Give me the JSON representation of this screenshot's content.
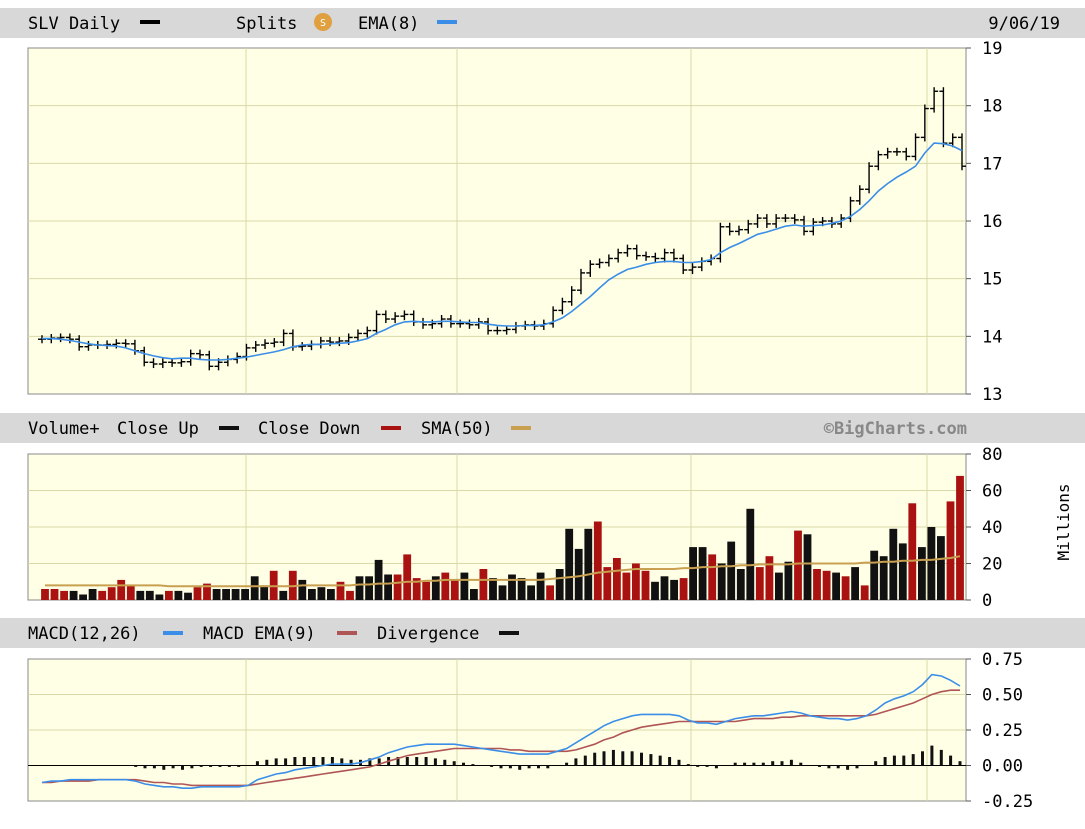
{
  "colors": {
    "bar_bg": "#d8d8d8",
    "plot_bg": "#ffffe6",
    "grid": "#d8d8a8",
    "price": "#000000",
    "ema": "#3b8ee8",
    "vol_up": "#111111",
    "vol_down": "#aa1111",
    "sma": "#c8a050",
    "macd": "#3b8ee8",
    "macd_ema": "#b05555",
    "divergence": "#111111",
    "splits_badge": "#e0a040"
  },
  "price_panel": {
    "symbol_label": "SLV Daily",
    "splits_label": "Splits",
    "splits_icon": "S",
    "ema_label": "EMA(8)",
    "date": "9/06/19"
  },
  "volume_panel": {
    "volume_label": "Volume+",
    "close_up_label": "Close Up",
    "close_down_label": "Close Down",
    "sma_label": "SMA(50)",
    "watermark": "©BigCharts.com",
    "unit_label": "Millions"
  },
  "macd_panel": {
    "macd_label": "MACD(12,26)",
    "macd_ema_label": "MACD EMA(9)",
    "divergence_label": "Divergence"
  },
  "chart_data": [
    {
      "type": "ohlc",
      "title": "SLV Daily",
      "ylim": [
        13,
        19
      ],
      "yticks": [
        "19",
        "18",
        "17",
        "16",
        "15",
        "14",
        "13"
      ],
      "ytick_values": [
        19,
        18,
        17,
        16,
        15,
        14,
        13
      ],
      "series": [
        {
          "name": "SLV",
          "style": "ohlc-bar",
          "close": [
            13.95,
            13.97,
            13.98,
            13.95,
            13.82,
            13.85,
            13.85,
            13.86,
            13.88,
            13.87,
            13.75,
            13.55,
            13.52,
            13.55,
            13.54,
            13.56,
            13.7,
            13.68,
            13.48,
            13.55,
            13.6,
            13.65,
            13.8,
            13.85,
            13.88,
            13.9,
            14.05,
            13.82,
            13.83,
            13.86,
            13.92,
            13.9,
            13.92,
            13.98,
            14.05,
            14.1,
            14.38,
            14.3,
            14.35,
            14.38,
            14.25,
            14.2,
            14.22,
            14.3,
            14.22,
            14.22,
            14.2,
            14.25,
            14.1,
            14.1,
            14.12,
            14.18,
            14.2,
            14.18,
            14.22,
            14.45,
            14.6,
            14.8,
            15.1,
            15.25,
            15.28,
            15.35,
            15.45,
            15.52,
            15.4,
            15.38,
            15.35,
            15.45,
            15.35,
            15.15,
            15.2,
            15.3,
            15.35,
            15.9,
            15.82,
            15.85,
            15.95,
            16.05,
            15.95,
            16.05,
            16.05,
            16.02,
            15.82,
            15.98,
            16.0,
            15.95,
            16.05,
            16.35,
            16.55,
            16.95,
            17.15,
            17.2,
            17.2,
            17.12,
            17.45,
            17.95,
            18.25,
            17.35,
            17.45,
            16.95
          ]
        },
        {
          "name": "EMA(8)",
          "style": "line",
          "values": [
            13.96,
            13.96,
            13.95,
            13.93,
            13.9,
            13.87,
            13.85,
            13.84,
            13.83,
            13.8,
            13.75,
            13.7,
            13.66,
            13.63,
            13.61,
            13.62,
            13.62,
            13.6,
            13.59,
            13.59,
            13.6,
            13.62,
            13.64,
            13.67,
            13.7,
            13.73,
            13.77,
            13.82,
            13.85,
            13.86,
            13.86,
            13.87,
            13.88,
            13.89,
            13.92,
            13.96,
            14.05,
            14.12,
            14.2,
            14.25,
            14.26,
            14.25,
            14.25,
            14.26,
            14.26,
            14.25,
            14.24,
            14.24,
            14.21,
            14.19,
            14.18,
            14.18,
            14.19,
            14.19,
            14.2,
            14.25,
            14.32,
            14.43,
            14.56,
            14.69,
            14.84,
            14.98,
            15.08,
            15.16,
            15.2,
            15.25,
            15.28,
            15.3,
            15.3,
            15.28,
            15.28,
            15.3,
            15.33,
            15.45,
            15.54,
            15.61,
            15.69,
            15.77,
            15.81,
            15.86,
            15.91,
            15.93,
            15.91,
            15.92,
            15.93,
            15.96,
            16.0,
            16.08,
            16.2,
            16.35,
            16.52,
            16.65,
            16.76,
            16.85,
            16.95,
            17.18,
            17.35,
            17.34,
            17.3,
            17.22
          ]
        }
      ]
    },
    {
      "type": "bar",
      "title": "Volume+",
      "ylim": [
        0,
        80
      ],
      "yticks": [
        "80",
        "60",
        "40",
        "20",
        "0"
      ],
      "ytick_values": [
        80,
        60,
        40,
        20,
        0
      ],
      "ylabel": "Millions",
      "series": [
        {
          "name": "Close Up / Close Down",
          "style": "bars",
          "values": [
            6,
            6,
            5,
            5,
            3,
            6,
            5,
            7,
            11,
            8,
            5,
            5,
            3,
            5,
            5,
            4,
            7,
            9,
            6,
            6,
            6,
            6,
            13,
            8,
            16,
            5,
            16,
            11,
            6,
            7,
            6,
            10,
            5,
            13,
            13,
            22,
            14,
            14,
            25,
            12,
            10,
            13,
            15,
            11,
            15,
            6,
            17,
            12,
            8,
            14,
            12,
            8,
            15,
            8,
            17,
            39,
            28,
            39,
            43,
            18,
            23,
            15,
            20,
            16,
            10,
            13,
            11,
            12,
            29,
            29,
            25,
            20,
            32,
            17,
            50,
            18,
            24,
            15,
            21,
            38,
            36,
            17,
            16,
            15,
            13,
            18,
            8,
            27,
            24,
            39,
            31,
            53,
            29,
            40,
            35,
            54,
            68
          ],
          "up": [
            0,
            0,
            0,
            1,
            1,
            1,
            0,
            0,
            0,
            0,
            1,
            1,
            1,
            0,
            1,
            1,
            0,
            0,
            1,
            1,
            1,
            1,
            1,
            1,
            0,
            1,
            0,
            1,
            1,
            1,
            1,
            0,
            0,
            1,
            1,
            1,
            1,
            0,
            0,
            0,
            0,
            1,
            0,
            0,
            1,
            1,
            0,
            1,
            1,
            1,
            1,
            1,
            1,
            0,
            1,
            1,
            1,
            1,
            0,
            0,
            0,
            0,
            0,
            0,
            1,
            1,
            1,
            0,
            1,
            1,
            0,
            1,
            1,
            1,
            1,
            0,
            0,
            1,
            1,
            0,
            1,
            0,
            0,
            1,
            0,
            1,
            0,
            1,
            1,
            1,
            1,
            0,
            1,
            1,
            1,
            0,
            0
          ]
        },
        {
          "name": "SMA(50)",
          "style": "line",
          "values": [
            8,
            8,
            8,
            8,
            8,
            8,
            8,
            8,
            8,
            8,
            8,
            8,
            8,
            7.5,
            7.5,
            7.5,
            7.5,
            7.5,
            7.5,
            7.5,
            7.5,
            7.5,
            7.5,
            7.5,
            7.5,
            7.5,
            7.5,
            8,
            8,
            8,
            8,
            8,
            8,
            8.5,
            8.5,
            9,
            9,
            9.5,
            10,
            10,
            10.5,
            10.5,
            11,
            11,
            11,
            11,
            11,
            11,
            11,
            11,
            11,
            11,
            11,
            11.5,
            12,
            12.5,
            13,
            14,
            15,
            15.5,
            16,
            16.5,
            17,
            17,
            17,
            17,
            17,
            17.5,
            17.5,
            18,
            18,
            18.5,
            18.5,
            19,
            19,
            19.5,
            19.5,
            19.5,
            19.5,
            20,
            20,
            20,
            20,
            20,
            20,
            20,
            20.5,
            20.5,
            21,
            21,
            21.5,
            21.5,
            22,
            22,
            22.5,
            23,
            24
          ]
        }
      ]
    },
    {
      "type": "line",
      "title": "MACD(12,26)",
      "ylim": [
        -0.25,
        0.75
      ],
      "yticks": [
        "0.75",
        "0.50",
        "0.25",
        "0.00",
        "-0.25"
      ],
      "ytick_values": [
        0.75,
        0.5,
        0.25,
        0,
        -0.25
      ],
      "series": [
        {
          "name": "MACD(12,26)",
          "style": "line",
          "values": [
            -0.12,
            -0.11,
            -0.11,
            -0.1,
            -0.1,
            -0.1,
            -0.1,
            -0.1,
            -0.1,
            -0.1,
            -0.11,
            -0.13,
            -0.14,
            -0.15,
            -0.15,
            -0.16,
            -0.16,
            -0.15,
            -0.15,
            -0.15,
            -0.15,
            -0.15,
            -0.14,
            -0.1,
            -0.08,
            -0.06,
            -0.05,
            -0.03,
            -0.02,
            -0.01,
            0,
            0.01,
            0.01,
            0.01,
            0.02,
            0.04,
            0.06,
            0.09,
            0.11,
            0.13,
            0.14,
            0.15,
            0.15,
            0.15,
            0.15,
            0.14,
            0.13,
            0.12,
            0.11,
            0.1,
            0.09,
            0.08,
            0.08,
            0.08,
            0.08,
            0.1,
            0.12,
            0.16,
            0.2,
            0.24,
            0.28,
            0.31,
            0.33,
            0.35,
            0.36,
            0.36,
            0.36,
            0.36,
            0.35,
            0.32,
            0.3,
            0.3,
            0.29,
            0.31,
            0.33,
            0.34,
            0.35,
            0.35,
            0.36,
            0.37,
            0.38,
            0.37,
            0.35,
            0.34,
            0.33,
            0.33,
            0.32,
            0.33,
            0.35,
            0.39,
            0.44,
            0.47,
            0.49,
            0.52,
            0.57,
            0.64,
            0.63,
            0.6,
            0.56
          ]
        },
        {
          "name": "MACD EMA(9)",
          "style": "line",
          "values": [
            -0.12,
            -0.12,
            -0.11,
            -0.11,
            -0.11,
            -0.11,
            -0.1,
            -0.1,
            -0.1,
            -0.1,
            -0.1,
            -0.11,
            -0.12,
            -0.12,
            -0.13,
            -0.13,
            -0.14,
            -0.14,
            -0.14,
            -0.14,
            -0.14,
            -0.14,
            -0.14,
            -0.13,
            -0.12,
            -0.11,
            -0.1,
            -0.09,
            -0.08,
            -0.07,
            -0.06,
            -0.05,
            -0.04,
            -0.03,
            -0.02,
            -0.01,
            0.01,
            0.03,
            0.05,
            0.07,
            0.08,
            0.09,
            0.1,
            0.11,
            0.12,
            0.12,
            0.12,
            0.12,
            0.12,
            0.12,
            0.11,
            0.11,
            0.1,
            0.1,
            0.1,
            0.1,
            0.1,
            0.11,
            0.13,
            0.15,
            0.18,
            0.2,
            0.23,
            0.25,
            0.27,
            0.28,
            0.29,
            0.3,
            0.31,
            0.31,
            0.31,
            0.31,
            0.31,
            0.31,
            0.31,
            0.32,
            0.33,
            0.33,
            0.33,
            0.34,
            0.34,
            0.35,
            0.35,
            0.35,
            0.35,
            0.35,
            0.35,
            0.35,
            0.35,
            0.36,
            0.38,
            0.4,
            0.42,
            0.44,
            0.47,
            0.5,
            0.52,
            0.53,
            0.53
          ]
        },
        {
          "name": "Divergence",
          "style": "bars",
          "values": [
            0,
            0,
            0,
            0,
            0,
            0,
            0,
            0,
            0,
            0,
            -0.01,
            -0.02,
            -0.02,
            -0.03,
            -0.02,
            -0.03,
            -0.02,
            -0.01,
            -0.01,
            -0.01,
            -0.01,
            -0.01,
            0,
            0.03,
            0.04,
            0.05,
            0.05,
            0.06,
            0.06,
            0.06,
            0.06,
            0.06,
            0.05,
            0.04,
            0.04,
            0.05,
            0.05,
            0.06,
            0.06,
            0.06,
            0.06,
            0.06,
            0.05,
            0.04,
            0.03,
            0.02,
            0.01,
            0,
            -0.01,
            -0.02,
            -0.02,
            -0.03,
            -0.02,
            -0.02,
            -0.02,
            0,
            0.02,
            0.05,
            0.07,
            0.09,
            0.1,
            0.11,
            0.1,
            0.1,
            0.09,
            0.08,
            0.07,
            0.06,
            0.04,
            0.01,
            -0.01,
            -0.01,
            -0.02,
            0,
            0.02,
            0.02,
            0.02,
            0.02,
            0.03,
            0.03,
            0.04,
            0.02,
            0,
            -0.01,
            -0.02,
            -0.02,
            -0.03,
            -0.02,
            0,
            0.03,
            0.06,
            0.07,
            0.07,
            0.08,
            0.1,
            0.14,
            0.11,
            0.07,
            0.03
          ]
        }
      ]
    }
  ]
}
